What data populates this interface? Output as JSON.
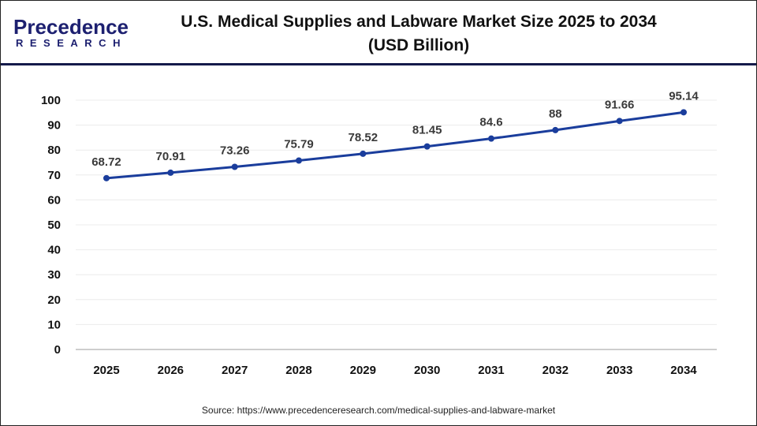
{
  "logo": {
    "line1": "Precedence",
    "line2": "RESEARCH"
  },
  "title": "U.S. Medical Supplies and Labware Market Size 2025 to 2034",
  "subtitle": "(USD Billion)",
  "source": "Source: https://www.precedenceresearch.com/medical-supplies-and-labware-market",
  "chart_data": {
    "type": "line",
    "title": "U.S. Medical Supplies and Labware Market Size 2025 to 2034 (USD Billion)",
    "categories": [
      "2025",
      "2026",
      "2027",
      "2028",
      "2029",
      "2030",
      "2031",
      "2032",
      "2033",
      "2034"
    ],
    "values": [
      68.72,
      70.91,
      73.26,
      75.79,
      78.52,
      81.45,
      84.6,
      88,
      91.66,
      95.14
    ],
    "data_labels": [
      "68.72",
      "70.91",
      "73.26",
      "75.79",
      "78.52",
      "81.45",
      "84.6",
      "88",
      "91.66",
      "95.14"
    ],
    "ylim": [
      0,
      100
    ],
    "yticks": [
      0,
      10,
      20,
      30,
      40,
      50,
      60,
      70,
      80,
      90,
      100
    ],
    "grid": true,
    "legend": "none",
    "line_color": "#1a3d9c"
  }
}
